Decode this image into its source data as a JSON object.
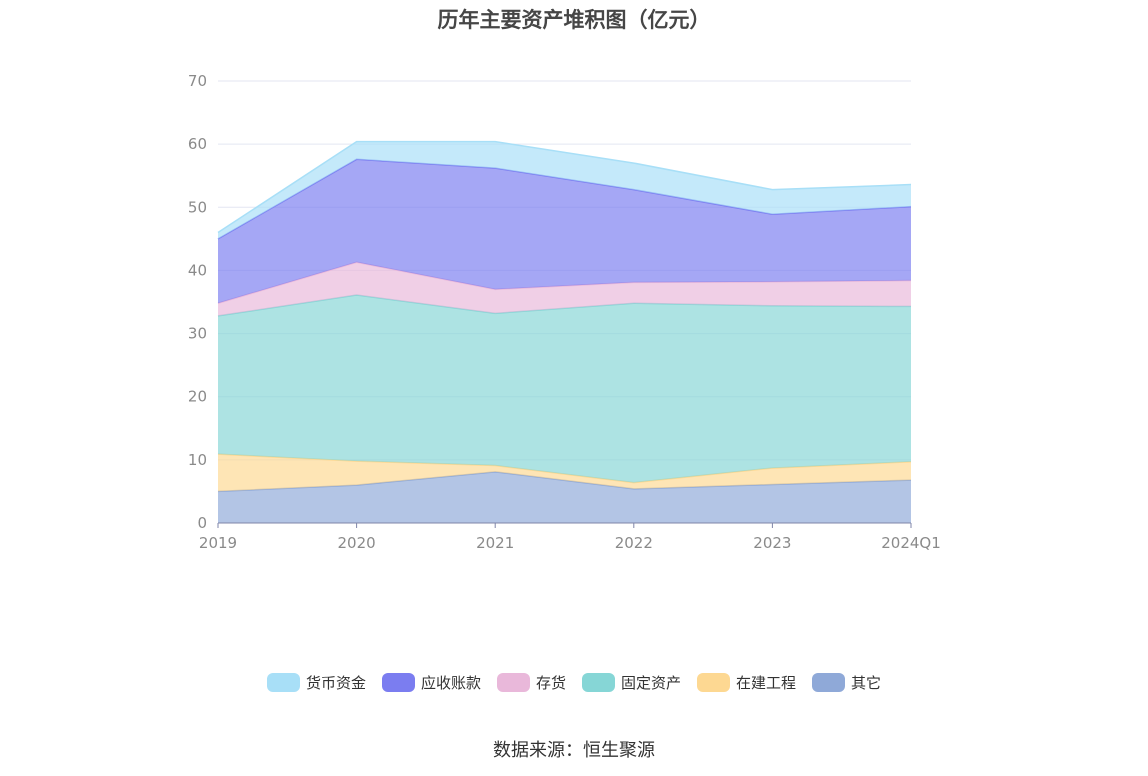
{
  "chart_data": {
    "type": "area",
    "stacked": true,
    "title": "历年主要资产堆积图（亿元）",
    "categories": [
      "2019",
      "2020",
      "2021",
      "2022",
      "2023",
      "2024Q1"
    ],
    "ylim": [
      0,
      70
    ],
    "yticks": [
      0,
      10,
      20,
      30,
      40,
      50,
      60,
      70
    ],
    "grid": true,
    "legend_position": "bottom",
    "series": [
      {
        "name": "其它",
        "color": "#8fa9d8",
        "values": [
          5.0,
          6.0,
          8.1,
          5.4,
          6.1,
          6.8
        ]
      },
      {
        "name": "在建工程",
        "color": "#fdd892",
        "values": [
          5.9,
          3.8,
          1.0,
          1.0,
          2.6,
          2.9
        ]
      },
      {
        "name": "固定资产",
        "color": "#86d6d6",
        "values": [
          21.9,
          26.3,
          24.1,
          28.4,
          25.7,
          24.6
        ]
      },
      {
        "name": "存货",
        "color": "#e9b8da",
        "values": [
          2.0,
          5.2,
          3.8,
          3.3,
          3.8,
          4.1
        ]
      },
      {
        "name": "应收账款",
        "color": "#7b7df0",
        "values": [
          10.2,
          16.3,
          19.2,
          14.7,
          10.7,
          11.7
        ]
      },
      {
        "name": "货币资金",
        "color": "#a8dff7",
        "values": [
          1.0,
          2.8,
          4.2,
          4.2,
          3.9,
          3.5
        ]
      }
    ]
  },
  "legend_order": [
    "货币资金",
    "应收账款",
    "存货",
    "固定资产",
    "在建工程",
    "其它"
  ],
  "source": "数据来源：恒生聚源"
}
